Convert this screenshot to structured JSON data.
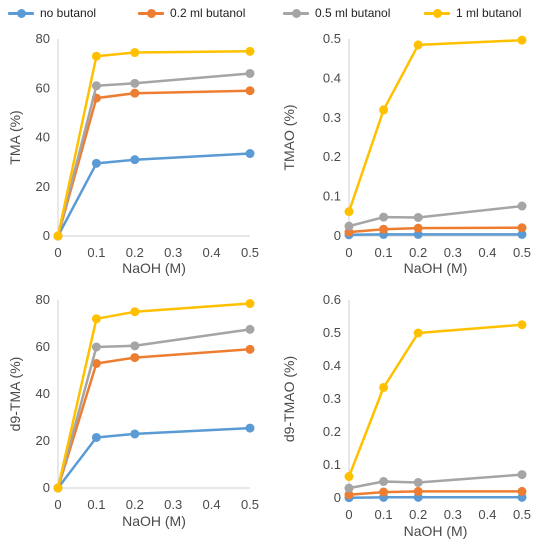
{
  "legend": [
    {
      "name": "no butanol",
      "color": "#5b9bd5"
    },
    {
      "name": "0.2 ml butanol",
      "color": "#ed7d31"
    },
    {
      "name": "0.5 ml butanol",
      "color": "#a5a5a5"
    },
    {
      "name": "1 ml butanol",
      "color": "#ffc000"
    }
  ],
  "chart_data": [
    {
      "type": "line",
      "xlabel": "NaOH (M)",
      "ylabel": "TMA (%)",
      "xlim": [
        0,
        0.5
      ],
      "ylim": [
        0,
        80
      ],
      "x_ticks": [
        "0",
        "0.1",
        "0.2",
        "0.3",
        "0.4",
        "0.5"
      ],
      "y_ticks": [
        "0",
        "20",
        "40",
        "60",
        "80"
      ],
      "x": [
        0,
        0.1,
        0.2,
        0.5
      ],
      "series": [
        {
          "name": "no butanol",
          "values": [
            0,
            29.5,
            31,
            33.5
          ]
        },
        {
          "name": "0.2 ml butanol",
          "values": [
            0,
            56,
            58,
            59
          ]
        },
        {
          "name": "0.5 ml butanol",
          "values": [
            0,
            61,
            62,
            66
          ]
        },
        {
          "name": "1 ml butanol",
          "values": [
            0,
            73,
            74.5,
            75
          ]
        }
      ]
    },
    {
      "type": "line",
      "xlabel": "NaOH (M)",
      "ylabel": "TMAO (%)",
      "xlim": [
        0,
        0.5
      ],
      "ylim": [
        0,
        0.5
      ],
      "x_ticks": [
        "0",
        "0.1",
        "0.2",
        "0.3",
        "0.4",
        "0.5"
      ],
      "y_ticks": [
        "0",
        "0.1",
        "0.2",
        "0.3",
        "0.4",
        "0.5"
      ],
      "x": [
        0,
        0.1,
        0.2,
        0.5
      ],
      "series": [
        {
          "name": "no butanol",
          "values": [
            0.003,
            0.004,
            0.004,
            0.004
          ]
        },
        {
          "name": "0.2 ml butanol",
          "values": [
            0.01,
            0.017,
            0.02,
            0.021
          ]
        },
        {
          "name": "0.5 ml butanol",
          "values": [
            0.025,
            0.048,
            0.047,
            0.076
          ]
        },
        {
          "name": "1 ml butanol",
          "values": [
            0.062,
            0.32,
            0.485,
            0.497
          ]
        }
      ]
    },
    {
      "type": "line",
      "xlabel": "NaOH (M)",
      "ylabel": "d9-TMA (%)",
      "xlim": [
        0,
        0.5
      ],
      "ylim": [
        0,
        80
      ],
      "x_ticks": [
        "0",
        "0.1",
        "0.2",
        "0.3",
        "0.4",
        "0.5"
      ],
      "y_ticks": [
        "0",
        "20",
        "40",
        "60",
        "80"
      ],
      "x": [
        0,
        0.1,
        0.2,
        0.5
      ],
      "series": [
        {
          "name": "no butanol",
          "values": [
            0,
            21.5,
            23,
            25.5
          ]
        },
        {
          "name": "0.2 ml butanol",
          "values": [
            0,
            53,
            55.5,
            59
          ]
        },
        {
          "name": "0.5 ml butanol",
          "values": [
            0,
            60,
            60.5,
            67.5
          ]
        },
        {
          "name": "1 ml butanol",
          "values": [
            0,
            72,
            75,
            78.5
          ]
        }
      ]
    },
    {
      "type": "line",
      "xlabel": "NaOH (M)",
      "ylabel": "d9-TMAO (%)",
      "xlim": [
        0,
        0.5
      ],
      "ylim": [
        0,
        0.6
      ],
      "x_ticks": [
        "0",
        "0.1",
        "0.2",
        "0.3",
        "0.4",
        "0.5"
      ],
      "y_ticks": [
        "0",
        "0.1",
        "0.2",
        "0.3",
        "0.4",
        "0.5",
        "0.6"
      ],
      "x": [
        0,
        0.1,
        0.2,
        0.5
      ],
      "series": [
        {
          "name": "no butanol",
          "values": [
            0.001,
            0.002,
            0.002,
            0.002
          ]
        },
        {
          "name": "0.2 ml butanol",
          "values": [
            0.01,
            0.018,
            0.02,
            0.02
          ]
        },
        {
          "name": "0.5 ml butanol",
          "values": [
            0.03,
            0.05,
            0.047,
            0.071
          ]
        },
        {
          "name": "1 ml butanol",
          "values": [
            0.065,
            0.335,
            0.5,
            0.525
          ]
        }
      ]
    }
  ]
}
